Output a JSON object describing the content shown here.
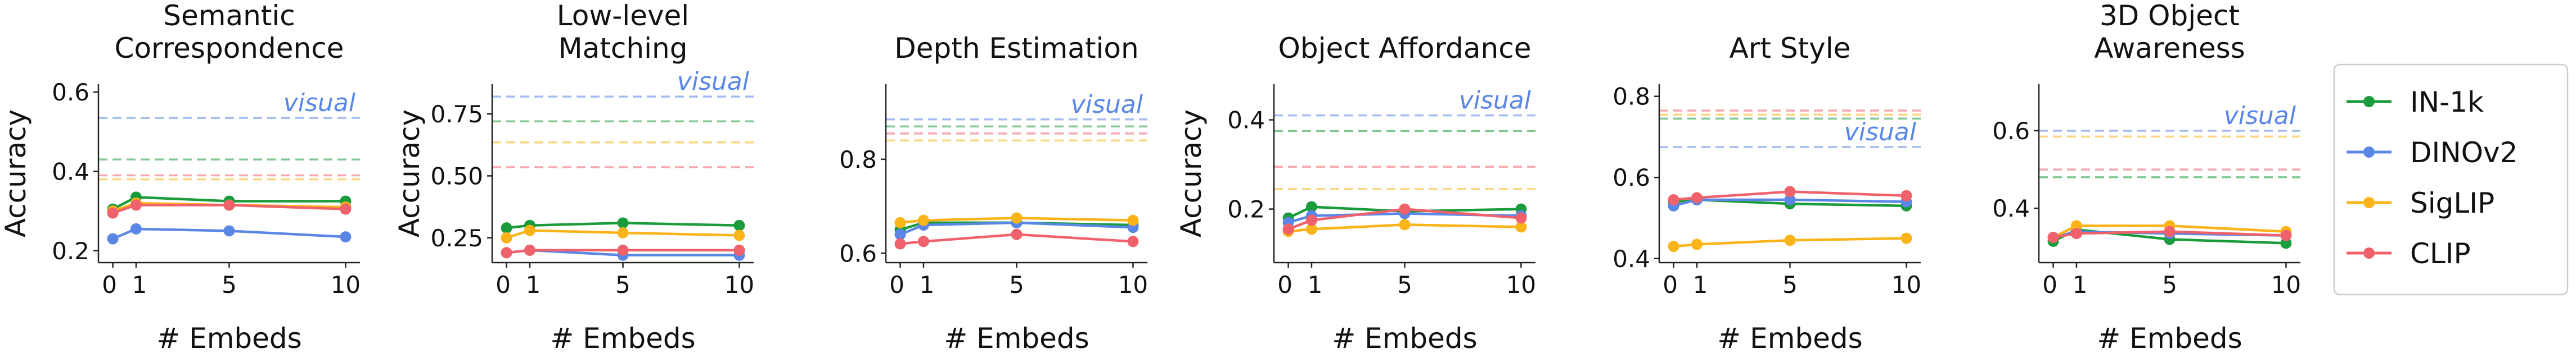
{
  "colors": {
    "IN-1k": "#1a9b3c",
    "DINOv2": "#5a87e6",
    "SigLIP": "#fbb31a",
    "CLIP": "#f0626b"
  },
  "legend": {
    "entries": [
      "IN-1k",
      "DINOv2",
      "SigLIP",
      "CLIP"
    ],
    "placement": "right"
  },
  "chart_data": [
    {
      "type": "line",
      "title": [
        "Semantic",
        "Correspondence"
      ],
      "xlabel": "# Embeds",
      "ylabel": "Accuracy",
      "x": [
        0,
        1,
        5,
        10
      ],
      "xticks": [
        "0",
        "1",
        "5",
        "10"
      ],
      "ylim": [
        0.17,
        0.62
      ],
      "yticks": [
        0.2,
        0.4,
        0.6
      ],
      "ytick_labels": [
        "0.2",
        "0.4",
        "0.6"
      ],
      "reference_label": "visual",
      "reference_lines": {
        "IN-1k": 0.43,
        "DINOv2": 0.535,
        "SigLIP": 0.38,
        "CLIP": 0.39
      },
      "series": [
        {
          "name": "IN-1k",
          "values": [
            0.305,
            0.335,
            0.325,
            0.325
          ]
        },
        {
          "name": "DINOv2",
          "values": [
            0.23,
            0.255,
            0.25,
            0.235
          ]
        },
        {
          "name": "SigLIP",
          "values": [
            0.3,
            0.32,
            0.315,
            0.31
          ]
        },
        {
          "name": "CLIP",
          "values": [
            0.295,
            0.315,
            0.315,
            0.305
          ]
        }
      ]
    },
    {
      "type": "line",
      "title": [
        "Low-level",
        "Matching"
      ],
      "xlabel": "# Embeds",
      "ylabel": "Accuracy",
      "x": [
        0,
        1,
        5,
        10
      ],
      "xticks": [
        "0",
        "1",
        "5",
        "10"
      ],
      "ylim": [
        0.15,
        0.87
      ],
      "yticks": [
        0.25,
        0.5,
        0.75
      ],
      "ytick_labels": [
        "0.25",
        "0.50",
        "0.75"
      ],
      "reference_label": "visual",
      "reference_lines": {
        "IN-1k": 0.72,
        "DINOv2": 0.82,
        "SigLIP": 0.635,
        "CLIP": 0.535
      },
      "series": [
        {
          "name": "IN-1k",
          "values": [
            0.29,
            0.3,
            0.31,
            0.3
          ]
        },
        {
          "name": "DINOv2",
          "values": [
            0.19,
            0.2,
            0.18,
            0.18
          ]
        },
        {
          "name": "SigLIP",
          "values": [
            0.25,
            0.28,
            0.27,
            0.26
          ]
        },
        {
          "name": "CLIP",
          "values": [
            0.19,
            0.2,
            0.2,
            0.2
          ]
        }
      ]
    },
    {
      "type": "line",
      "title": [
        "Depth Estimation"
      ],
      "xlabel": "# Embeds",
      "ylabel": "",
      "x": [
        0,
        1,
        5,
        10
      ],
      "xticks": [
        "0",
        "1",
        "5",
        "10"
      ],
      "ylim": [
        0.58,
        0.96
      ],
      "yticks": [
        0.6,
        0.8
      ],
      "ytick_labels": [
        "0.6",
        "0.8"
      ],
      "reference_label": "visual",
      "reference_lines": {
        "IN-1k": 0.87,
        "DINOv2": 0.885,
        "SigLIP": 0.84,
        "CLIP": 0.855
      },
      "series": [
        {
          "name": "IN-1k",
          "values": [
            0.65,
            0.665,
            0.665,
            0.66
          ]
        },
        {
          "name": "DINOv2",
          "values": [
            0.64,
            0.66,
            0.665,
            0.655
          ]
        },
        {
          "name": "SigLIP",
          "values": [
            0.665,
            0.67,
            0.675,
            0.67
          ]
        },
        {
          "name": "CLIP",
          "values": [
            0.62,
            0.625,
            0.64,
            0.625
          ]
        }
      ]
    },
    {
      "type": "line",
      "title": [
        "Object Affordance"
      ],
      "xlabel": "# Embeds",
      "ylabel": "Accuracy",
      "x": [
        0,
        1,
        5,
        10
      ],
      "xticks": [
        "0",
        "1",
        "5",
        "10"
      ],
      "ylim": [
        0.08,
        0.48
      ],
      "yticks": [
        0.2,
        0.4
      ],
      "ytick_labels": [
        "0.2",
        "0.4"
      ],
      "reference_label": "visual",
      "reference_lines": {
        "IN-1k": 0.375,
        "DINOv2": 0.41,
        "SigLIP": 0.245,
        "CLIP": 0.295
      },
      "series": [
        {
          "name": "IN-1k",
          "values": [
            0.18,
            0.205,
            0.195,
            0.2
          ]
        },
        {
          "name": "DINOv2",
          "values": [
            0.17,
            0.185,
            0.19,
            0.185
          ]
        },
        {
          "name": "SigLIP",
          "values": [
            0.15,
            0.155,
            0.165,
            0.16
          ]
        },
        {
          "name": "CLIP",
          "values": [
            0.155,
            0.175,
            0.2,
            0.18
          ]
        }
      ]
    },
    {
      "type": "line",
      "title": [
        "Art Style"
      ],
      "xlabel": "# Embeds",
      "ylabel": "",
      "x": [
        0,
        1,
        5,
        10
      ],
      "xticks": [
        "0",
        "1",
        "5",
        "10"
      ],
      "ylim": [
        0.39,
        0.83
      ],
      "yticks": [
        0.4,
        0.6,
        0.8
      ],
      "ytick_labels": [
        "0.4",
        "0.6",
        "0.8"
      ],
      "reference_label": "visual",
      "reference_lines": {
        "IN-1k": 0.745,
        "DINOv2": 0.675,
        "SigLIP": 0.755,
        "CLIP": 0.765
      },
      "series": [
        {
          "name": "IN-1k",
          "values": [
            0.54,
            0.545,
            0.535,
            0.53
          ]
        },
        {
          "name": "DINOv2",
          "values": [
            0.53,
            0.545,
            0.545,
            0.54
          ]
        },
        {
          "name": "SigLIP",
          "values": [
            0.43,
            0.435,
            0.445,
            0.45
          ]
        },
        {
          "name": "CLIP",
          "values": [
            0.545,
            0.55,
            0.565,
            0.555
          ]
        }
      ]
    },
    {
      "type": "line",
      "title": [
        "3D Object",
        "Awareness"
      ],
      "xlabel": "# Embeds",
      "ylabel": "",
      "x": [
        0,
        1,
        5,
        10
      ],
      "xticks": [
        "0",
        "1",
        "5",
        "10"
      ],
      "ylim": [
        0.26,
        0.72
      ],
      "yticks": [
        0.4,
        0.6
      ],
      "ytick_labels": [
        "0.4",
        "0.6"
      ],
      "reference_label": "visual",
      "reference_lines": {
        "IN-1k": 0.48,
        "DINOv2": 0.6,
        "SigLIP": 0.585,
        "CLIP": 0.5
      },
      "series": [
        {
          "name": "IN-1k",
          "values": [
            0.315,
            0.345,
            0.32,
            0.31
          ]
        },
        {
          "name": "DINOv2",
          "values": [
            0.325,
            0.34,
            0.335,
            0.33
          ]
        },
        {
          "name": "SigLIP",
          "values": [
            0.325,
            0.355,
            0.355,
            0.34
          ]
        },
        {
          "name": "CLIP",
          "values": [
            0.325,
            0.335,
            0.34,
            0.33
          ]
        }
      ]
    }
  ]
}
